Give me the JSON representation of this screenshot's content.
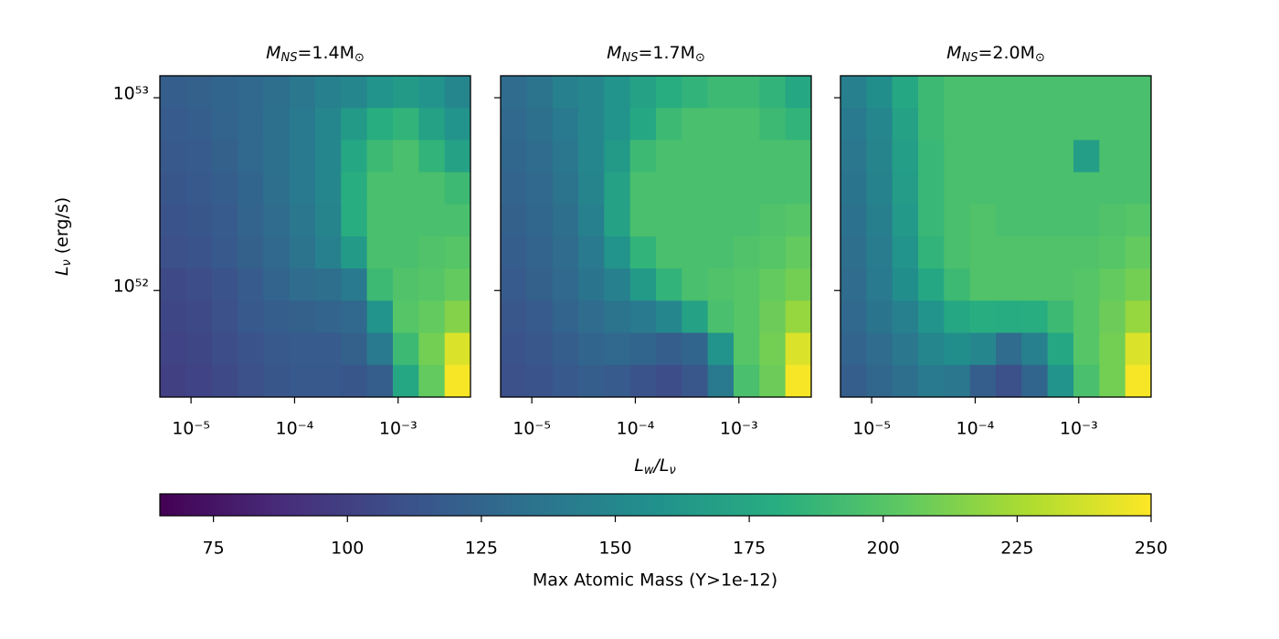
{
  "chart_data": {
    "type": "heatmap",
    "xlabel": [
      "L",
      "w",
      "/L",
      "ν"
    ],
    "ylabel": [
      "L",
      "ν",
      " (erg/s)"
    ],
    "xscale": "log",
    "yscale": "log",
    "xlim": [
      5e-06,
      0.005
    ],
    "ylim": [
      2.8e+51,
      1.3e+53
    ],
    "xticks": [
      {
        "value": 1e-05,
        "label": "10⁻⁵"
      },
      {
        "value": 0.0001,
        "label": "10⁻⁴"
      },
      {
        "value": 0.001,
        "label": "10⁻³"
      }
    ],
    "yticks": [
      {
        "value": 1e+52,
        "label": "10⁵²"
      },
      {
        "value": 1e+53,
        "label": "10⁵³"
      }
    ],
    "colormap": "viridis",
    "clim": [
      65,
      250
    ],
    "cticks": [
      75,
      100,
      125,
      150,
      175,
      200,
      225,
      250
    ],
    "colorbar_label": "Max Atomic Mass (Y>1e-12)",
    "panels": [
      {
        "title": [
          "M",
          "NS",
          "=1.4M",
          "⊙"
        ],
        "values": [
          [
            120,
            122,
            125,
            128,
            132,
            138,
            145,
            150,
            160,
            165,
            160,
            150
          ],
          [
            118,
            120,
            124,
            128,
            133,
            140,
            150,
            165,
            180,
            185,
            170,
            160
          ],
          [
            116,
            118,
            122,
            127,
            133,
            140,
            150,
            175,
            190,
            195,
            185,
            170
          ],
          [
            114,
            116,
            120,
            125,
            132,
            140,
            150,
            180,
            195,
            195,
            195,
            190
          ],
          [
            112,
            114,
            118,
            124,
            130,
            138,
            148,
            180,
            195,
            195,
            195,
            195
          ],
          [
            110,
            112,
            116,
            122,
            128,
            135,
            145,
            165,
            195,
            195,
            198,
            200
          ],
          [
            106,
            108,
            112,
            118,
            124,
            130,
            132,
            140,
            190,
            198,
            200,
            205
          ],
          [
            104,
            106,
            110,
            116,
            120,
            122,
            124,
            128,
            160,
            200,
            205,
            215
          ],
          [
            102,
            104,
            108,
            112,
            116,
            118,
            118,
            122,
            140,
            190,
            210,
            240
          ],
          [
            100,
            102,
            106,
            110,
            114,
            116,
            116,
            114,
            120,
            175,
            205,
            248
          ]
        ]
      },
      {
        "title": [
          "M",
          "NS",
          "=1.7M",
          "⊙"
        ],
        "values": [
          [
            130,
            135,
            145,
            150,
            160,
            170,
            180,
            185,
            190,
            190,
            185,
            175
          ],
          [
            128,
            133,
            140,
            150,
            160,
            175,
            190,
            195,
            195,
            195,
            190,
            185
          ],
          [
            126,
            130,
            138,
            150,
            165,
            190,
            195,
            195,
            195,
            195,
            195,
            195
          ],
          [
            124,
            128,
            135,
            148,
            170,
            195,
            195,
            195,
            195,
            195,
            195,
            195
          ],
          [
            122,
            126,
            132,
            145,
            170,
            195,
            195,
            195,
            195,
            195,
            198,
            200
          ],
          [
            120,
            124,
            130,
            140,
            160,
            185,
            195,
            195,
            195,
            198,
            200,
            205
          ],
          [
            118,
            122,
            128,
            136,
            145,
            165,
            185,
            195,
            198,
            200,
            205,
            210
          ],
          [
            115,
            118,
            124,
            130,
            135,
            140,
            150,
            170,
            195,
            200,
            208,
            220
          ],
          [
            112,
            115,
            120,
            125,
            128,
            125,
            120,
            125,
            160,
            200,
            210,
            240
          ],
          [
            110,
            112,
            116,
            120,
            118,
            112,
            108,
            115,
            140,
            195,
            208,
            248
          ]
        ]
      },
      {
        "title": [
          "M",
          "NS",
          "=2.0M",
          "⊙"
        ],
        "values": [
          [
            145,
            155,
            175,
            190,
            195,
            195,
            195,
            195,
            195,
            195,
            195,
            195
          ],
          [
            140,
            150,
            170,
            190,
            195,
            195,
            195,
            195,
            195,
            195,
            195,
            195
          ],
          [
            138,
            148,
            168,
            188,
            195,
            195,
            195,
            195,
            195,
            168,
            195,
            195
          ],
          [
            136,
            146,
            166,
            188,
            195,
            195,
            195,
            195,
            195,
            195,
            195,
            195
          ],
          [
            134,
            144,
            164,
            188,
            195,
            198,
            195,
            195,
            195,
            195,
            198,
            200
          ],
          [
            132,
            142,
            160,
            185,
            195,
            198,
            198,
            198,
            198,
            198,
            200,
            205
          ],
          [
            130,
            140,
            155,
            175,
            190,
            198,
            198,
            198,
            198,
            200,
            205,
            210
          ],
          [
            128,
            136,
            145,
            160,
            175,
            180,
            178,
            180,
            190,
            200,
            208,
            220
          ],
          [
            124,
            130,
            138,
            150,
            155,
            150,
            130,
            145,
            175,
            200,
            210,
            240
          ],
          [
            120,
            126,
            132,
            140,
            138,
            120,
            110,
            125,
            160,
            195,
            210,
            248
          ]
        ]
      }
    ]
  }
}
